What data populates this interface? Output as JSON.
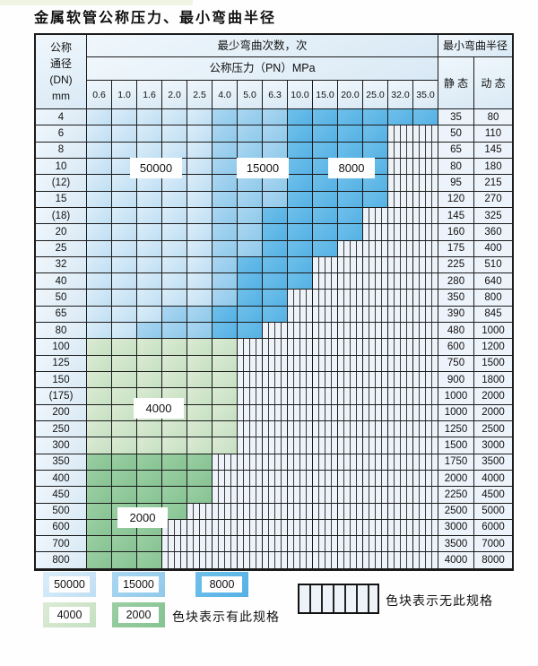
{
  "title": "金属软管公称压力、最小弯曲半径",
  "table": {
    "header": {
      "dn_lines": [
        "公称",
        "通径",
        "(DN)",
        "mm"
      ],
      "bend_times": "最少弯曲次数，次",
      "pressure": "公称压力（PN）MPa",
      "min_radius": "最小弯曲半径",
      "static_label": "静 态",
      "dynamic_label": "动 态",
      "pressures": [
        "0.6",
        "1.0",
        "1.6",
        "2.0",
        "2.5",
        "4.0",
        "5.0",
        "6.3",
        "10.0",
        "15.0",
        "20.0",
        "25.0",
        "32.0",
        "35.0"
      ]
    },
    "zone_meaning": {
      "L": "50000",
      "M": "15000",
      "D": "8000",
      "g": "4000",
      "G": "2000",
      "H": "无此规格"
    },
    "rows": [
      {
        "dn": "4",
        "static": "35",
        "dynamic": "80",
        "pattern": "LLLLLMMMDDDDDD"
      },
      {
        "dn": "6",
        "static": "50",
        "dynamic": "110",
        "pattern": "LLLLLMMMDDDDHH"
      },
      {
        "dn": "8",
        "static": "65",
        "dynamic": "145",
        "pattern": "LLLLLMMMDDDDHH"
      },
      {
        "dn": "10",
        "static": "80",
        "dynamic": "180",
        "pattern": "LLLLLMMMDDDDHH"
      },
      {
        "dn": "(12)",
        "static": "95",
        "dynamic": "215",
        "pattern": "LLLLLMMMDDDDHH"
      },
      {
        "dn": "15",
        "static": "120",
        "dynamic": "270",
        "pattern": "LLLLLMMMDDDDHH"
      },
      {
        "dn": "(18)",
        "static": "145",
        "dynamic": "325",
        "pattern": "LLLLLMMDDDDHHH"
      },
      {
        "dn": "20",
        "static": "160",
        "dynamic": "360",
        "pattern": "LLLLLMMDDDDHHH"
      },
      {
        "dn": "25",
        "static": "175",
        "dynamic": "400",
        "pattern": "LLLLLMMDDDHHHH"
      },
      {
        "dn": "32",
        "static": "225",
        "dynamic": "510",
        "pattern": "LLLLLMDDDHHHHH"
      },
      {
        "dn": "40",
        "static": "280",
        "dynamic": "640",
        "pattern": "LLLLLMDDDHHHHH"
      },
      {
        "dn": "50",
        "static": "350",
        "dynamic": "800",
        "pattern": "LLLLLMDDHHHHHH"
      },
      {
        "dn": "65",
        "static": "390",
        "dynamic": "845",
        "pattern": "LLLMMDDDHHHHHH"
      },
      {
        "dn": "80",
        "static": "480",
        "dynamic": "1000",
        "pattern": "LLMMMDDHHHHHHH"
      },
      {
        "dn": "100",
        "static": "600",
        "dynamic": "1200",
        "pattern": "ggggggHHHHHHHH"
      },
      {
        "dn": "125",
        "static": "750",
        "dynamic": "1500",
        "pattern": "ggggggHHHHHHHH"
      },
      {
        "dn": "150",
        "static": "900",
        "dynamic": "1800",
        "pattern": "ggggggHHHHHHHH"
      },
      {
        "dn": "(175)",
        "static": "1000",
        "dynamic": "2000",
        "pattern": "ggggggHHHHHHHH"
      },
      {
        "dn": "200",
        "static": "1000",
        "dynamic": "2000",
        "pattern": "ggggggHHHHHHHH"
      },
      {
        "dn": "250",
        "static": "1250",
        "dynamic": "2500",
        "pattern": "ggggggHHHHHHHH"
      },
      {
        "dn": "300",
        "static": "1500",
        "dynamic": "3000",
        "pattern": "ggggggHHHHHHHH"
      },
      {
        "dn": "350",
        "static": "1750",
        "dynamic": "3500",
        "pattern": "GGGGGHHHHHHHHH"
      },
      {
        "dn": "400",
        "static": "2000",
        "dynamic": "4000",
        "pattern": "GGGGGHHHHHHHHH"
      },
      {
        "dn": "450",
        "static": "2250",
        "dynamic": "4500",
        "pattern": "GGGGGHHHHHHHHH"
      },
      {
        "dn": "500",
        "static": "2500",
        "dynamic": "5000",
        "pattern": "GGGGHHHHHHHHHH"
      },
      {
        "dn": "600",
        "static": "3000",
        "dynamic": "6000",
        "pattern": "GGGHHHHHHHHHHH"
      },
      {
        "dn": "700",
        "static": "3500",
        "dynamic": "7000",
        "pattern": "GGGHHHHHHHHHHH"
      },
      {
        "dn": "800",
        "static": "4000",
        "dynamic": "8000",
        "pattern": "GGGHHHHHHHHHHH"
      }
    ]
  },
  "zone_labels": [
    "50000",
    "15000",
    "8000",
    "4000",
    "2000"
  ],
  "legend": {
    "items": [
      {
        "label": "50000",
        "zone": "L"
      },
      {
        "label": "15000",
        "zone": "M"
      },
      {
        "label": "8000",
        "zone": "D"
      },
      {
        "label": "4000",
        "zone": "g"
      },
      {
        "label": "2000",
        "zone": "G"
      }
    ],
    "has_spec": "色块表示有此规格",
    "no_spec": "色块表示无此规格"
  },
  "colors": {
    "light_blue": [
      "#dcedf9",
      "#bfdff3"
    ],
    "med_blue": [
      "#abd7f2",
      "#8fc9ea"
    ],
    "dark_blue": [
      "#6fc0ea",
      "#55b1e4"
    ],
    "light_green": [
      "#dcebd4",
      "#c5e0c2"
    ],
    "dark_green": [
      "#9bcfa3",
      "#86c393"
    ],
    "hatch_bg": "#eef3fa",
    "hatch_line": "#3c3c3c",
    "header_bg": [
      "#f0f7fc",
      "#d9e9f5"
    ],
    "value_bg": "#edf3fa",
    "border": "#1b1b1b"
  }
}
